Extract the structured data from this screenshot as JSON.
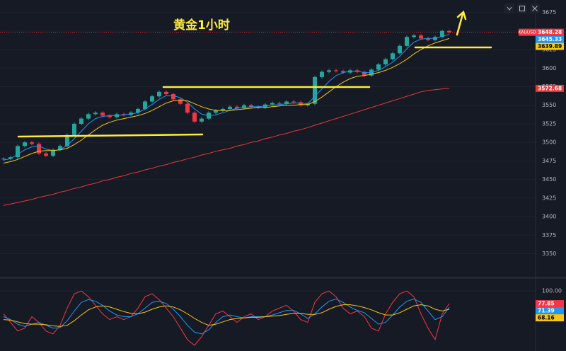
{
  "chart_data": [
    {
      "type": "candlestick",
      "title": "黄金1小时",
      "symbol": "XAUUSD",
      "categories": [
        null,
        null,
        null,
        null,
        null,
        null,
        null,
        null,
        null,
        null,
        null,
        null,
        null,
        null,
        null,
        null,
        null,
        null,
        null,
        null,
        null,
        null,
        null,
        null,
        null,
        null,
        null,
        null,
        null,
        null,
        null,
        null,
        null,
        null,
        null,
        null,
        null,
        null,
        null,
        null,
        null,
        null,
        null,
        null,
        null,
        null,
        null,
        null,
        null,
        null,
        null,
        null,
        null,
        null,
        null,
        null,
        null,
        null,
        null,
        null,
        null,
        null,
        null,
        null
      ],
      "ylim": [
        3320,
        3687
      ],
      "yticks": [
        3350,
        3375,
        3400,
        3425,
        3450,
        3475,
        3500,
        3525,
        3550,
        3575,
        3600,
        3625,
        3650,
        3675
      ],
      "up_color": "#26a69a",
      "down_color": "#f23645",
      "series": [
        {
          "color": "#f23645",
          "values": [
            3478,
            3480,
            3495,
            3500,
            3498,
            3485,
            3482,
            3490,
            3495,
            3510,
            3525,
            3532,
            3538,
            3540,
            3536,
            3534,
            3538,
            3537,
            3540,
            3545,
            3555,
            3562,
            3568,
            3565,
            3558,
            3552,
            3540,
            3528,
            3532,
            3540,
            3543,
            3545,
            3548,
            3546,
            3550,
            3548,
            3547,
            3551,
            3553,
            3552,
            3555,
            3554,
            3550,
            3552,
            3588,
            3595,
            3597,
            3596,
            3594,
            3597,
            3595,
            3590,
            3598,
            3605,
            3612,
            3620,
            3630,
            3642,
            3644,
            3640,
            3638,
            3642,
            3650,
            3648.28
          ]
        },
        {
          "color": "#2196f3",
          "values": [
            3476,
            3478,
            3484,
            3490,
            3494,
            3495,
            3491,
            3489,
            3490,
            3496,
            3505,
            3515,
            3525,
            3532,
            3535,
            3536,
            3536,
            3537,
            3538,
            3540,
            3545,
            3551,
            3558,
            3563,
            3563,
            3560,
            3554,
            3545,
            3538,
            3536,
            3537,
            3540,
            3543,
            3546,
            3547,
            3548,
            3548,
            3549,
            3550,
            3551,
            3552,
            3553,
            3553,
            3552,
            3562,
            3572,
            3582,
            3590,
            3594,
            3596,
            3596,
            3594,
            3594,
            3597,
            3602,
            3608,
            3616,
            3626,
            3635,
            3639,
            3640,
            3640,
            3643,
            3645.33
          ]
        },
        {
          "color": "#f5c518",
          "values": [
            3472,
            3474,
            3477,
            3481,
            3485,
            3488,
            3489,
            3489,
            3490,
            3492,
            3497,
            3503,
            3510,
            3517,
            3523,
            3527,
            3530,
            3532,
            3534,
            3536,
            3539,
            3543,
            3548,
            3553,
            3556,
            3557,
            3556,
            3552,
            3548,
            3545,
            3543,
            3543,
            3543,
            3544,
            3545,
            3546,
            3547,
            3547,
            3548,
            3549,
            3550,
            3550,
            3551,
            3551,
            3555,
            3561,
            3568,
            3575,
            3581,
            3586,
            3589,
            3590,
            3592,
            3594,
            3597,
            3601,
            3606,
            3612,
            3619,
            3625,
            3630,
            3634,
            3637,
            3639.89
          ]
        },
        {
          "color": "#e53935",
          "values": [
            3415,
            3417,
            3419,
            3421,
            3423,
            3426,
            3428,
            3430,
            3433,
            3435,
            3438,
            3440,
            3443,
            3445,
            3448,
            3450,
            3453,
            3455,
            3458,
            3460,
            3463,
            3465,
            3468,
            3470,
            3473,
            3475,
            3478,
            3480,
            3483,
            3485,
            3488,
            3490,
            3492,
            3495,
            3497,
            3500,
            3502,
            3505,
            3507,
            3510,
            3512,
            3515,
            3517,
            3520,
            3523,
            3526,
            3529,
            3532,
            3535,
            3538,
            3541,
            3544,
            3547,
            3550,
            3553,
            3556,
            3559,
            3562,
            3565,
            3568,
            3570,
            3571,
            3572,
            3572.68
          ]
        }
      ]
    },
    {
      "type": "line",
      "categories": [
        null,
        null,
        null,
        null,
        null,
        null,
        null,
        null,
        null,
        null,
        null,
        null,
        null,
        null,
        null,
        null,
        null,
        null,
        null,
        null,
        null,
        null,
        null,
        null,
        null,
        null,
        null,
        null,
        null,
        null,
        null,
        null,
        null,
        null,
        null,
        null,
        null,
        null,
        null,
        null,
        null,
        null,
        null,
        null,
        null,
        null,
        null,
        null,
        null,
        null,
        null,
        null,
        null,
        null,
        null,
        null,
        null,
        null,
        null,
        null,
        null,
        null,
        null,
        null
      ],
      "ylim": [
        0,
        120
      ],
      "yticks": [
        {
          "value": 100,
          "label": "100.00"
        }
      ],
      "series": [
        {
          "color": "#f23645",
          "values": [
            60,
            45,
            30,
            35,
            55,
            45,
            30,
            25,
            40,
            70,
            95,
            100,
            90,
            75,
            60,
            50,
            55,
            50,
            55,
            70,
            90,
            95,
            85,
            70,
            55,
            35,
            15,
            5,
            20,
            40,
            60,
            65,
            55,
            45,
            55,
            60,
            50,
            55,
            65,
            70,
            75,
            65,
            50,
            45,
            80,
            95,
            100,
            90,
            70,
            60,
            65,
            55,
            35,
            30,
            60,
            80,
            95,
            100,
            90,
            60,
            35,
            15,
            60,
            77.85
          ]
        },
        {
          "color": "#2196f3",
          "values": [
            55,
            50,
            42,
            38,
            42,
            45,
            40,
            35,
            36,
            48,
            65,
            80,
            85,
            82,
            75,
            65,
            58,
            55,
            55,
            60,
            70,
            80,
            82,
            78,
            68,
            55,
            40,
            28,
            25,
            32,
            45,
            55,
            58,
            55,
            53,
            55,
            55,
            55,
            58,
            62,
            66,
            66,
            60,
            52,
            60,
            72,
            82,
            86,
            80,
            72,
            66,
            62,
            52,
            42,
            45,
            58,
            72,
            82,
            86,
            80,
            65,
            50,
            55,
            71.39
          ]
        },
        {
          "color": "#f5c518",
          "values": [
            50,
            49,
            46,
            43,
            42,
            42,
            41,
            39,
            38,
            40,
            48,
            58,
            67,
            72,
            74,
            72,
            68,
            64,
            61,
            60,
            63,
            68,
            72,
            74,
            72,
            67,
            60,
            52,
            45,
            40,
            42,
            46,
            50,
            52,
            53,
            54,
            54,
            55,
            56,
            57,
            59,
            61,
            61,
            59,
            59,
            62,
            68,
            73,
            76,
            76,
            74,
            71,
            67,
            62,
            58,
            58,
            62,
            68,
            74,
            76,
            74,
            68,
            65,
            68.16
          ]
        }
      ]
    }
  ]
}
